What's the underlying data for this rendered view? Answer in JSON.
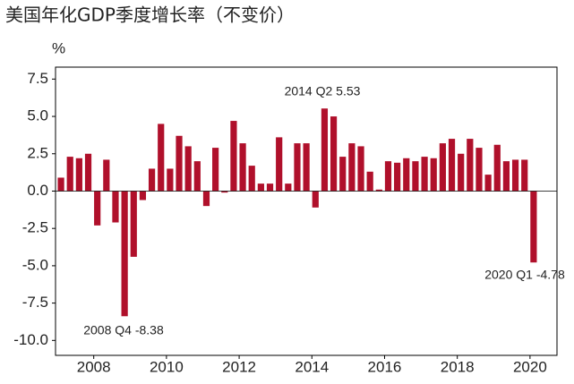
{
  "chart_data": {
    "type": "bar",
    "title": "美国年化GDP季度增长率（不变价）",
    "y_label": "%",
    "categories": [
      null,
      null,
      null,
      null,
      "2008",
      null,
      null,
      null,
      null,
      null,
      null,
      null,
      "2010",
      null,
      null,
      null,
      null,
      null,
      null,
      null,
      "2012",
      null,
      null,
      null,
      null,
      null,
      null,
      null,
      "2014",
      null,
      null,
      null,
      null,
      null,
      null,
      null,
      "2016",
      null,
      null,
      null,
      null,
      null,
      null,
      null,
      "2018",
      null,
      null,
      null,
      null,
      null,
      null,
      null,
      "2020"
    ],
    "values": [
      0.9,
      2.3,
      2.2,
      2.5,
      -2.3,
      2.1,
      -2.1,
      -8.38,
      -4.4,
      -0.6,
      1.5,
      4.5,
      1.5,
      3.7,
      3.0,
      2.0,
      -1.0,
      2.9,
      -0.1,
      4.7,
      3.2,
      1.7,
      0.5,
      0.5,
      3.6,
      0.5,
      3.2,
      3.2,
      -1.1,
      5.53,
      5.0,
      2.3,
      3.2,
      3.0,
      1.3,
      0.1,
      2.0,
      1.9,
      2.2,
      2.0,
      2.3,
      2.2,
      3.2,
      3.5,
      2.5,
      3.5,
      2.9,
      1.1,
      3.1,
      2.0,
      2.1,
      2.1,
      -4.78
    ],
    "color": "#b0102b",
    "ylim": [
      -11,
      8.3
    ],
    "yticks": [
      {
        "value": 7.5,
        "label": "7.5"
      },
      {
        "value": 5,
        "label": "5.0"
      },
      {
        "value": 2.5,
        "label": "2.5"
      },
      {
        "value": 0,
        "label": "0.0"
      },
      {
        "value": -2.5,
        "label": "-2.5"
      },
      {
        "value": -5,
        "label": "-5.0"
      },
      {
        "value": -7.5,
        "label": "-7.5"
      },
      {
        "value": -10,
        "label": "-10.0"
      }
    ],
    "annotations": [
      "2014 Q2 5.53",
      "2008 Q4 -8.38",
      "2020 Q1 -4.78"
    ]
  }
}
